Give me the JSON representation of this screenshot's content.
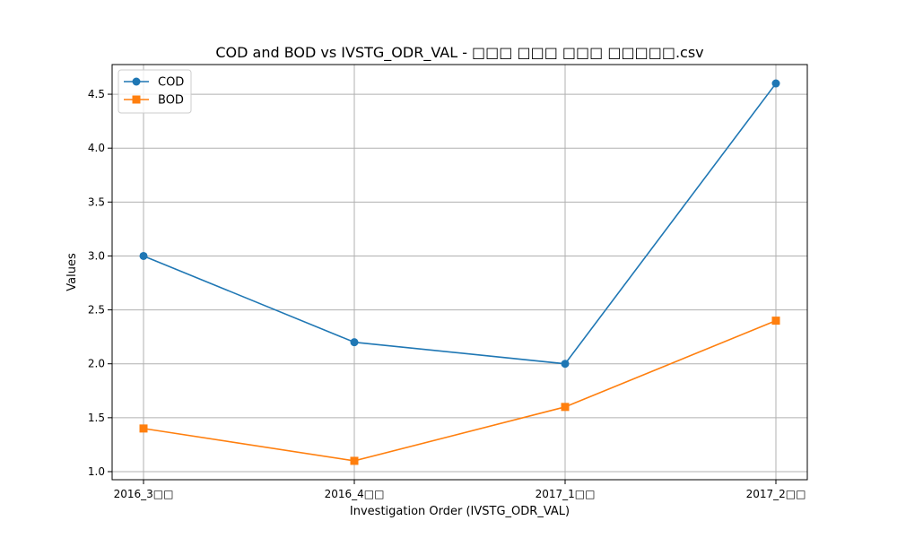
{
  "chart_data": {
    "type": "line",
    "title": "COD and BOD vs IVSTG_ODR_VAL -  □□□ □□□ □□□ □□□□□.csv",
    "xlabel": "Investigation Order (IVSTG_ODR_VAL)",
    "ylabel": "Values",
    "categories": [
      "2016_3□□",
      "2016_4□□",
      "2017_1□□",
      "2017_2□□"
    ],
    "series": [
      {
        "name": "COD",
        "values": [
          3.0,
          2.2,
          2.0,
          4.6
        ],
        "color": "#1f77b4",
        "marker": "circle"
      },
      {
        "name": "BOD",
        "values": [
          1.4,
          1.1,
          1.6,
          2.4
        ],
        "color": "#ff7f0e",
        "marker": "square"
      }
    ],
    "ylim": [
      0.925,
      4.775
    ],
    "yticks": [
      "1.0",
      "1.5",
      "2.0",
      "2.5",
      "3.0",
      "3.5",
      "4.0",
      "4.5"
    ],
    "grid": true,
    "legend": "top-left"
  }
}
